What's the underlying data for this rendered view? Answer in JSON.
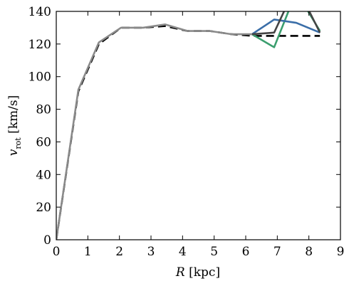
{
  "chart_data": {
    "type": "line",
    "xlabel_var": "R",
    "xlabel_unit": "[kpc]",
    "ylabel_var": "v",
    "ylabel_sub": "rot",
    "ylabel_unit": "[km/s]",
    "xlim": [
      0,
      9
    ],
    "ylim": [
      0,
      140
    ],
    "xticks": [
      "0",
      "1",
      "2",
      "3",
      "4",
      "5",
      "6",
      "7",
      "8",
      "9"
    ],
    "yticks": [
      "0",
      "20",
      "40",
      "60",
      "80",
      "100",
      "120",
      "140"
    ],
    "grid": false,
    "legend": "none",
    "series": [
      {
        "color": "#000000",
        "dash": "dashed",
        "x": [
          0,
          0.7,
          1.35,
          2.05,
          2.75,
          3.45,
          4.15,
          4.85,
          5.55,
          6.2,
          6.9,
          7.6,
          8.35
        ],
        "y": [
          0,
          91,
          120,
          130,
          130,
          131,
          128,
          128,
          126,
          125,
          125,
          125,
          125
        ]
      },
      {
        "color": "#3b9e6e",
        "dash": "solid",
        "x": [
          6.2,
          6.9,
          7.6,
          8.35
        ],
        "y": [
          126,
          118,
          152,
          128
        ]
      },
      {
        "color": "#3a6ea8",
        "dash": "solid",
        "x": [
          6.2,
          6.9,
          7.6,
          8.35
        ],
        "y": [
          126,
          135,
          133,
          127
        ]
      },
      {
        "color": "#444444",
        "dash": "solid",
        "x": [
          6.2,
          6.9,
          7.6,
          8.35
        ],
        "y": [
          126,
          127,
          156,
          127
        ]
      },
      {
        "color": "#8a8a8a",
        "dash": "solid",
        "x": [
          0,
          0.7,
          1.35,
          2.05,
          2.75,
          3.45,
          4.15,
          4.85,
          5.55,
          6.2
        ],
        "y": [
          0,
          92,
          121,
          130,
          130,
          132,
          128,
          128,
          126,
          126
        ]
      }
    ]
  }
}
